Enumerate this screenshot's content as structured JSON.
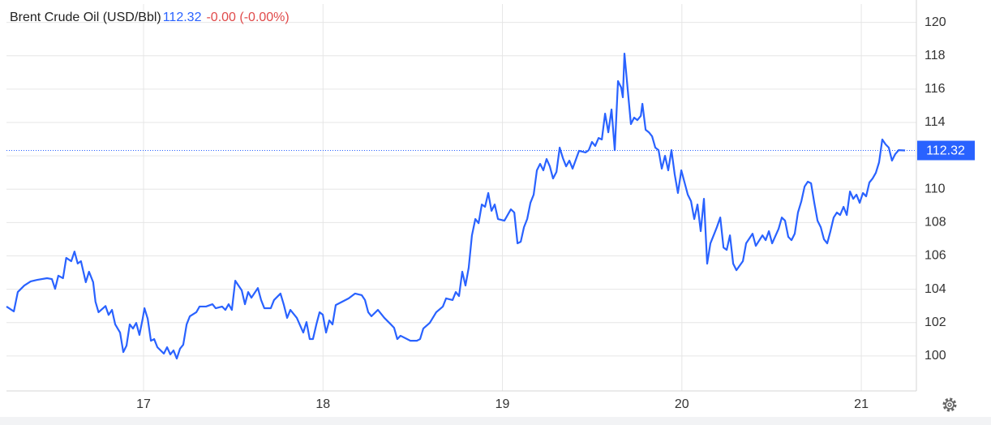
{
  "chart_data": {
    "type": "line",
    "title": "Brent Crude Oil (USD/Bbl)",
    "last_price": {
      "value": 112.32,
      "label": "112.32"
    },
    "change": "-0.00 (-0.00%)",
    "xlim": [
      16.236,
      21.307
    ],
    "xticks": [
      17,
      18,
      19,
      20,
      21
    ],
    "ylim": [
      97.9,
      121.1
    ],
    "yticks": [
      100,
      102,
      104,
      106,
      108,
      110,
      112,
      114,
      116,
      118,
      120
    ],
    "grid": true,
    "series": [
      {
        "color": "#2962ff",
        "x": [
          16.236,
          16.277,
          16.299,
          16.335,
          16.371,
          16.407,
          16.462,
          16.489,
          16.507,
          16.525,
          16.551,
          16.569,
          16.597,
          16.615,
          16.633,
          16.651,
          16.678,
          16.696,
          16.719,
          16.732,
          16.749,
          16.788,
          16.805,
          16.824,
          16.842,
          16.869,
          16.887,
          16.905,
          16.923,
          16.941,
          16.959,
          16.977,
          16.995,
          17.005,
          17.023,
          17.041,
          17.059,
          17.077,
          17.113,
          17.131,
          17.149,
          17.167,
          17.185,
          17.203,
          17.221,
          17.24,
          17.258,
          17.294,
          17.312,
          17.348,
          17.384,
          17.402,
          17.438,
          17.456,
          17.474,
          17.492,
          17.511,
          17.547,
          17.565,
          17.583,
          17.601,
          17.637,
          17.655,
          17.673,
          17.709,
          17.727,
          17.763,
          17.782,
          17.8,
          17.818,
          17.854,
          17.89,
          17.908,
          17.926,
          17.944,
          17.963,
          17.981,
          17.999,
          18.017,
          18.035,
          18.053,
          18.071,
          18.107,
          18.143,
          18.179,
          18.216,
          18.234,
          18.252,
          18.27,
          18.306,
          18.342,
          18.378,
          18.396,
          18.414,
          18.432,
          18.487,
          18.523,
          18.541,
          18.559,
          18.595,
          18.631,
          18.668,
          18.686,
          18.722,
          18.74,
          18.758,
          18.776,
          18.794,
          18.812,
          18.83,
          18.849,
          18.867,
          18.885,
          18.903,
          18.921,
          18.939,
          18.957,
          18.975,
          19.011,
          19.047,
          19.066,
          19.084,
          19.102,
          19.12,
          19.138,
          19.156,
          19.174,
          19.192,
          19.21,
          19.228,
          19.246,
          19.264,
          19.282,
          19.301,
          19.319,
          19.337,
          19.355,
          19.373,
          19.391,
          19.427,
          19.463,
          19.481,
          19.499,
          19.517,
          19.536,
          19.554,
          19.572,
          19.59,
          19.608,
          19.626,
          19.644,
          19.662,
          19.671,
          19.68,
          19.698,
          19.716,
          19.734,
          19.752,
          19.771,
          19.78,
          19.798,
          19.816,
          19.834,
          19.852,
          19.87,
          19.888,
          19.906,
          19.924,
          19.942,
          19.96,
          19.978,
          19.997,
          20.015,
          20.033,
          20.051,
          20.069,
          20.087,
          20.105,
          20.123,
          20.141,
          20.159,
          20.177,
          20.195,
          20.214,
          20.232,
          20.25,
          20.268,
          20.286,
          20.304,
          20.34,
          20.358,
          20.394,
          20.412,
          20.449,
          20.467,
          20.485,
          20.503,
          20.539,
          20.557,
          20.575,
          20.593,
          20.611,
          20.629,
          20.647,
          20.666,
          20.684,
          20.702,
          20.72,
          20.738,
          20.756,
          20.774,
          20.792,
          20.81,
          20.828,
          20.846,
          20.864,
          20.882,
          20.901,
          20.919,
          20.937,
          20.955,
          20.973,
          20.991,
          21.009,
          21.027,
          21.045,
          21.063,
          21.081,
          21.099,
          21.117,
          21.135,
          21.153,
          21.171,
          21.189,
          21.208,
          21.244
        ],
        "values": [
          102.96,
          102.67,
          103.83,
          104.22,
          104.47,
          104.56,
          104.66,
          104.61,
          104.02,
          104.81,
          104.66,
          105.88,
          105.68,
          106.26,
          105.54,
          105.68,
          104.42,
          105.05,
          104.42,
          103.25,
          102.62,
          102.99,
          102.46,
          102.76,
          101.89,
          101.4,
          100.23,
          100.62,
          101.89,
          101.64,
          101.98,
          101.26,
          102.23,
          102.86,
          102.23,
          100.91,
          101.01,
          100.52,
          100.14,
          100.52,
          100.09,
          100.33,
          99.84,
          100.43,
          100.67,
          101.89,
          102.38,
          102.62,
          102.96,
          102.96,
          103.1,
          102.86,
          102.96,
          102.76,
          103.1,
          102.76,
          104.51,
          103.93,
          103.1,
          103.83,
          103.49,
          104.07,
          103.35,
          102.86,
          102.86,
          103.35,
          103.74,
          103.05,
          102.28,
          102.76,
          102.28,
          101.4,
          102.03,
          101.01,
          101.01,
          101.89,
          102.62,
          102.47,
          101.4,
          102.13,
          101.89,
          103.05,
          103.25,
          103.45,
          103.74,
          103.64,
          103.35,
          102.62,
          102.38,
          102.76,
          102.28,
          101.89,
          101.69,
          101.01,
          101.21,
          100.91,
          100.91,
          101.01,
          101.64,
          101.98,
          102.62,
          102.96,
          103.45,
          103.35,
          103.83,
          103.59,
          105.05,
          104.22,
          105.29,
          107.23,
          108.21,
          107.96,
          109.08,
          108.94,
          109.77,
          108.7,
          109.08,
          108.21,
          108.11,
          108.79,
          108.6,
          106.75,
          106.85,
          107.72,
          108.21,
          109.18,
          109.67,
          111.13,
          111.52,
          111.13,
          111.81,
          111.37,
          110.64,
          111.03,
          112.49,
          111.86,
          111.37,
          111.71,
          111.23,
          112.3,
          112.2,
          112.34,
          112.83,
          112.59,
          113.07,
          112.98,
          114.53,
          113.41,
          114.78,
          112.34,
          116.48,
          116.09,
          115.51,
          118.13,
          115.99,
          113.9,
          114.29,
          114.14,
          114.39,
          115.12,
          113.56,
          113.41,
          113.17,
          112.49,
          112.34,
          111.23,
          112.0,
          111.13,
          112.34,
          110.89,
          109.77,
          111.13,
          110.4,
          109.67,
          109.28,
          108.21,
          109.08,
          107.48,
          109.42,
          105.53,
          106.75,
          107.23,
          107.72,
          108.3,
          106.5,
          106.36,
          107.23,
          105.53,
          105.14,
          105.68,
          106.75,
          107.33,
          106.6,
          107.23,
          106.94,
          107.48,
          106.75,
          107.62,
          108.3,
          108.11,
          107.14,
          106.94,
          107.33,
          108.6,
          109.28,
          110.16,
          110.45,
          110.35,
          109.18,
          108.11,
          107.72,
          106.99,
          106.75,
          107.48,
          108.3,
          108.6,
          108.45,
          108.94,
          108.45,
          109.86,
          109.42,
          109.67,
          109.18,
          109.77,
          109.57,
          110.4,
          110.64,
          110.98,
          111.61,
          112.98,
          112.69,
          112.49,
          111.71,
          112.1,
          112.34,
          112.32
        ]
      }
    ]
  }
}
